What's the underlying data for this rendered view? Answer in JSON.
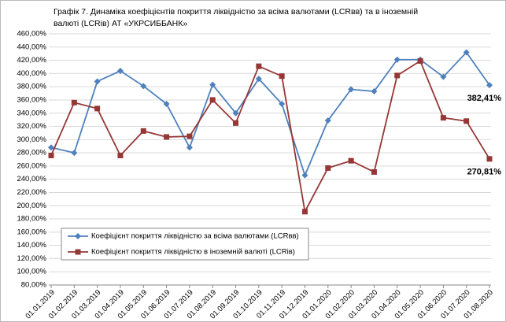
{
  "chart_data": {
    "type": "line",
    "title": [
      "Графік 7. Динаміка коефіцієнтів покриття ліквідністю за всіма валютами (LCRвв) та в іноземній",
      "валюті (LCRів) АТ «УКРСИББАНК»"
    ],
    "categories": [
      "01.01.2019",
      "01.02.2019",
      "01.03.2019",
      "01.04.2019",
      "01.05.2019",
      "01.06.2019",
      "01.07.2019",
      "01.08.2019",
      "01.09.2019",
      "01.10.2019",
      "01.11.2019",
      "01.12.2019",
      "01.01.2020",
      "01.02.2020",
      "01.03.2020",
      "01.04.2020",
      "01.05.2020",
      "01.06.2020",
      "01.07.2020",
      "01.08.2020"
    ],
    "series": [
      {
        "name": "Коефіцієнт покриття  ліквідністю за всіма валютами (LCRвв)",
        "color": "#4f81bd",
        "marker": "diamond",
        "label_color": "#1f5f8f",
        "values": [
          288,
          280,
          388,
          404,
          381,
          354,
          288,
          383,
          340,
          392,
          354,
          246,
          329,
          376,
          373,
          421,
          421,
          395,
          432,
          382.41
        ],
        "value_labels": [
          null,
          null,
          null,
          null,
          null,
          null,
          null,
          null,
          null,
          null,
          null,
          null,
          null,
          null,
          null,
          null,
          null,
          null,
          null,
          "382,41%"
        ]
      },
      {
        "name": "Коефіцієнт покриття ліквідністю в іноземній валюті (LCRів)",
        "color": "#953735",
        "marker": "square",
        "label_color": "#c0630f",
        "values": [
          276,
          356,
          347,
          276,
          313,
          304,
          305,
          360,
          325,
          411,
          396,
          191,
          257,
          268,
          251,
          397,
          419,
          333,
          328,
          270.81
        ],
        "value_labels": [
          null,
          null,
          null,
          null,
          null,
          null,
          null,
          null,
          null,
          null,
          null,
          null,
          null,
          null,
          null,
          null,
          null,
          null,
          null,
          "270,81%"
        ]
      }
    ],
    "ylim": [
      80,
      460
    ],
    "yticks": [
      {
        "value": 80,
        "label": "80,00%"
      },
      {
        "value": 100,
        "label": "100,00%"
      },
      {
        "value": 120,
        "label": "120,00%"
      },
      {
        "value": 140,
        "label": "140,00%"
      },
      {
        "value": 160,
        "label": "160,00%"
      },
      {
        "value": 180,
        "label": "180,00%"
      },
      {
        "value": 200,
        "label": "200,00%"
      },
      {
        "value": 220,
        "label": "220,00%"
      },
      {
        "value": 240,
        "label": "240,00%"
      },
      {
        "value": 260,
        "label": "260,00%"
      },
      {
        "value": 280,
        "label": "280,00%"
      },
      {
        "value": 300,
        "label": "300,00%"
      },
      {
        "value": 320,
        "label": "320,00%"
      },
      {
        "value": 340,
        "label": "340,00%"
      },
      {
        "value": 360,
        "label": "360,00%"
      },
      {
        "value": 380,
        "label": "380,00%"
      },
      {
        "value": 400,
        "label": "400,00%"
      },
      {
        "value": 420,
        "label": "420,00%"
      },
      {
        "value": 440,
        "label": "440,00%"
      },
      {
        "value": 460,
        "label": "460,00%"
      }
    ],
    "grid": true,
    "legend": "lower left"
  }
}
